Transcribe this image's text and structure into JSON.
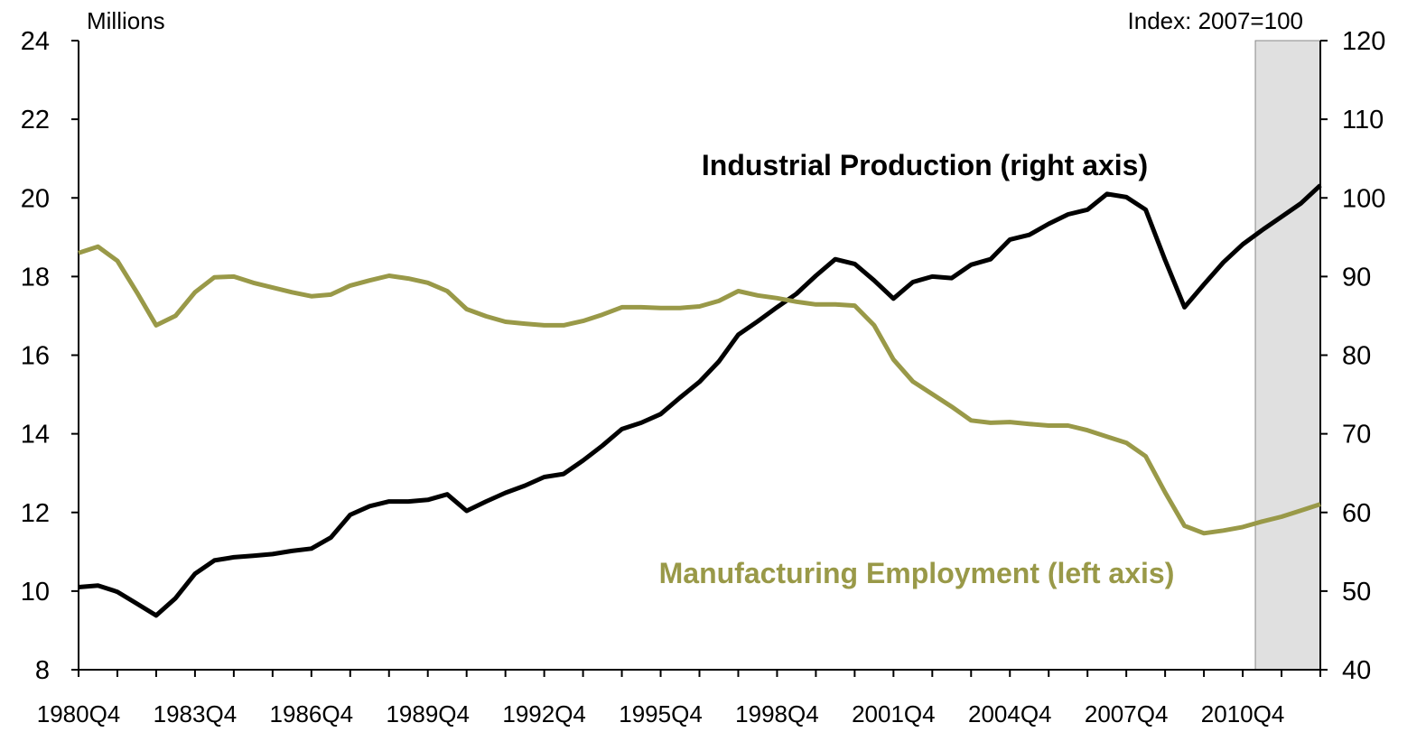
{
  "chart_data": {
    "type": "line",
    "y_label": "Millions",
    "y2_label": "Index: 2007=100",
    "categories": [
      "1980Q4",
      null,
      null,
      null,
      null,
      null,
      "1983Q4",
      null,
      null,
      null,
      null,
      null,
      "1986Q4",
      null,
      null,
      null,
      null,
      null,
      "1989Q4",
      null,
      null,
      null,
      null,
      null,
      "1992Q4",
      null,
      null,
      null,
      null,
      null,
      "1995Q4",
      null,
      null,
      null,
      null,
      null,
      "1998Q4",
      null,
      null,
      null,
      null,
      null,
      "2001Q4",
      null,
      null,
      null,
      null,
      null,
      "2004Q4",
      null,
      null,
      null,
      null,
      null,
      "2007Q4",
      null,
      null,
      null,
      null,
      null,
      "2010Q4",
      null,
      null,
      null,
      null
    ],
    "series": [
      {
        "name": "Industrial Production (right axis)",
        "color": "#000000",
        "axis": "y2",
        "values": [
          50.5,
          50.7,
          49.9,
          48.4,
          46.9,
          49.1,
          52.2,
          53.9,
          54.3,
          54.5,
          54.7,
          55.1,
          55.4,
          56.8,
          59.7,
          60.8,
          61.4,
          61.4,
          61.6,
          62.3,
          60.2,
          61.4,
          62.5,
          63.4,
          64.5,
          64.9,
          66.6,
          68.5,
          70.6,
          71.4,
          72.5,
          74.6,
          76.6,
          79.2,
          82.6,
          84.3,
          86.1,
          87.8,
          90.1,
          92.2,
          91.6,
          89.5,
          87.2,
          89.3,
          90.0,
          89.8,
          91.5,
          92.2,
          94.7,
          95.3,
          96.7,
          97.9,
          98.5,
          100.5,
          100.1,
          98.5,
          92.1,
          86.1,
          89.0,
          91.8,
          94.1,
          95.9,
          97.6,
          99.3,
          101.6
        ]
      },
      {
        "name": "Manufacturing Employment (left axis)",
        "color": "#999948",
        "axis": "y",
        "values": [
          18.6,
          18.76,
          18.4,
          17.6,
          16.76,
          17.0,
          17.6,
          17.98,
          18.0,
          17.84,
          17.72,
          17.6,
          17.5,
          17.54,
          17.77,
          17.9,
          18.02,
          17.95,
          17.84,
          17.63,
          17.17,
          16.99,
          16.85,
          16.8,
          16.76,
          16.76,
          16.87,
          17.03,
          17.22,
          17.22,
          17.2,
          17.2,
          17.24,
          17.38,
          17.63,
          17.52,
          17.45,
          17.36,
          17.29,
          17.29,
          17.26,
          16.76,
          15.89,
          15.33,
          15.01,
          14.69,
          14.34,
          14.28,
          14.3,
          14.25,
          14.21,
          14.21,
          14.09,
          13.93,
          13.77,
          13.43,
          12.51,
          11.66,
          11.47,
          11.54,
          11.63,
          11.77,
          11.89,
          12.05,
          12.21
        ]
      }
    ],
    "ylim": [
      8,
      24
    ],
    "yticks": [
      8,
      10,
      12,
      14,
      16,
      18,
      20,
      22,
      24
    ],
    "y2lim": [
      40,
      120
    ],
    "y2ticks": [
      40,
      50,
      60,
      70,
      80,
      90,
      100,
      110,
      120
    ],
    "shaded_from_category": 60.65,
    "shade_color": "#e0e0e0"
  }
}
